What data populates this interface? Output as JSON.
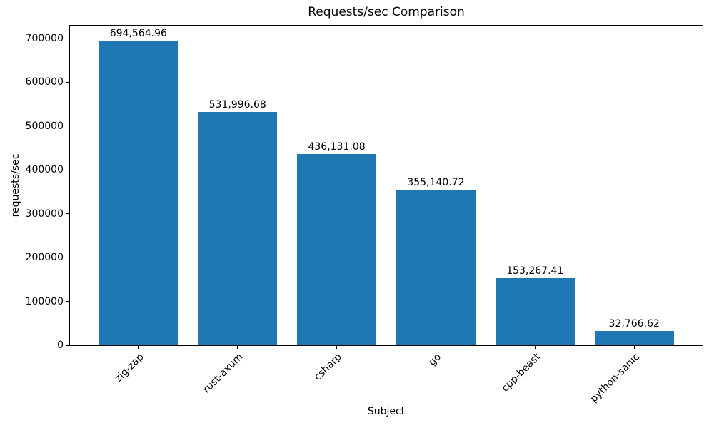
{
  "chart_data": {
    "type": "bar",
    "title": "Requests/sec Comparison",
    "xlabel": "Subject",
    "ylabel": "requests/sec",
    "categories": [
      "zig-zap",
      "rust-axum",
      "csharp",
      "go",
      "cpp-beast",
      "python-sanic"
    ],
    "values": [
      694564.96,
      531996.68,
      436131.08,
      355140.72,
      153267.41,
      32766.62
    ],
    "bar_labels": [
      "694,564.96",
      "531,996.68",
      "436,131.08",
      "355,140.72",
      "153,267.41",
      "32,766.62"
    ],
    "bar_color": "#1f77b4",
    "axis_color": "#000000",
    "text_color": "#000000",
    "background_color": "#ffffff",
    "ylim": [
      0,
      729293
    ],
    "yticks": [
      0,
      100000,
      200000,
      300000,
      400000,
      500000,
      600000,
      700000
    ],
    "ytick_labels": [
      "0",
      "100000",
      "200000",
      "300000",
      "400000",
      "500000",
      "600000",
      "700000"
    ],
    "xtick_rotation_deg": 45,
    "grid": false,
    "legend_position": "none"
  }
}
